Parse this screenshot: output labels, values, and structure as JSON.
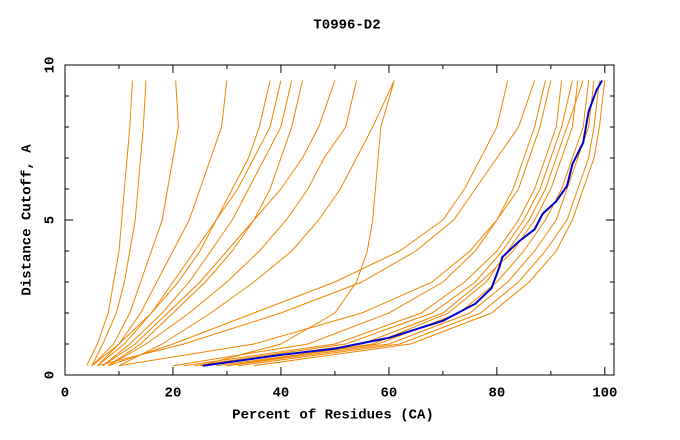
{
  "chart_data": {
    "type": "line",
    "title": "T0996-D2",
    "xlabel": "Percent of Residues (CA)",
    "ylabel": "Distance Cutoff, A",
    "xlim": [
      0,
      101.7
    ],
    "ylim": [
      0,
      10
    ],
    "xticks": [
      0,
      20,
      40,
      60,
      80,
      100
    ],
    "yticks": [
      0,
      5,
      10
    ],
    "xminorticks": [
      10,
      30,
      50,
      70,
      90
    ],
    "yminorticks": [
      1,
      2,
      3,
      4,
      6,
      7,
      8,
      9
    ],
    "series": [
      {
        "color": "#f28500",
        "x": [
          4,
          6,
          8,
          9,
          10,
          10.5,
          11,
          11.5,
          12,
          12.5
        ],
        "values": [
          0.3,
          1,
          2,
          3,
          4,
          5,
          6,
          7,
          8,
          9.5
        ]
      },
      {
        "color": "#f28500",
        "x": [
          5,
          7,
          9.5,
          11,
          12,
          13,
          13.5,
          14,
          14.5,
          15
        ],
        "values": [
          0.3,
          1,
          2,
          3,
          4,
          5,
          6,
          7,
          8,
          9.5
        ]
      },
      {
        "color": "#f28500",
        "x": [
          5,
          9,
          12,
          14,
          16,
          18,
          19,
          20,
          21,
          20.5
        ],
        "values": [
          0.3,
          1,
          2,
          3,
          4,
          5,
          6,
          7,
          8,
          9.5
        ]
      },
      {
        "color": "#f28500",
        "x": [
          6,
          10,
          14,
          17,
          20,
          23,
          25,
          27,
          29,
          30
        ],
        "values": [
          0.3,
          1,
          2,
          3,
          4,
          5,
          6,
          7,
          8,
          9.5
        ]
      },
      {
        "color": "#f28500",
        "x": [
          6,
          11,
          16,
          20,
          24,
          28,
          31,
          34,
          36,
          38
        ],
        "values": [
          0.3,
          1,
          2,
          3,
          4,
          5,
          6,
          7,
          8,
          9.5
        ]
      },
      {
        "color": "#f28500",
        "x": [
          7,
          12,
          18,
          23,
          27,
          31,
          34,
          37,
          40,
          42
        ],
        "values": [
          0.3,
          1,
          2,
          3,
          4,
          5,
          6,
          7,
          8,
          9.5
        ]
      },
      {
        "color": "#f28500",
        "x": [
          5,
          10,
          16,
          21,
          25,
          28,
          32,
          35,
          38,
          40
        ],
        "values": [
          0.3,
          1,
          2,
          3,
          4,
          5,
          6,
          7,
          8,
          9.5
        ]
      },
      {
        "color": "#f28500",
        "x": [
          8,
          14,
          20,
          26,
          31,
          35,
          38,
          40,
          42,
          44
        ],
        "values": [
          0.3,
          1,
          2,
          3,
          4,
          5,
          6,
          7,
          8,
          9.5
        ]
      },
      {
        "color": "#f28500",
        "x": [
          7,
          13,
          19,
          25,
          30,
          35,
          40,
          44,
          47,
          50
        ],
        "values": [
          0.3,
          1,
          2,
          3,
          4,
          5,
          6,
          7,
          8,
          9.5
        ]
      },
      {
        "color": "#f28500",
        "x": [
          8,
          15,
          23,
          30,
          36,
          41,
          45,
          48,
          52,
          54
        ],
        "values": [
          0.3,
          1,
          2,
          3,
          4,
          5,
          6,
          7,
          8,
          9.5
        ]
      },
      {
        "color": "#f28500",
        "x": [
          10,
          18,
          27,
          35,
          42,
          47,
          51,
          54,
          57,
          61
        ],
        "values": [
          0.3,
          1,
          2,
          3,
          4,
          5,
          6,
          7,
          8,
          9.5
        ]
      },
      {
        "color": "#f28500",
        "x": [
          25,
          40,
          50,
          54,
          56,
          57,
          57.5,
          58,
          58.5,
          61
        ],
        "values": [
          0.3,
          1,
          2,
          3,
          4,
          5,
          6,
          7,
          8,
          9.5
        ]
      },
      {
        "color": "#f28500",
        "x": [
          8,
          20,
          35,
          50,
          62,
          70,
          74,
          77,
          80,
          82
        ],
        "values": [
          0.3,
          1,
          2,
          3,
          4,
          5,
          6,
          7,
          8,
          9.5
        ]
      },
      {
        "color": "#f28500",
        "x": [
          6,
          22,
          40,
          55,
          65,
          72,
          76,
          80,
          84,
          87
        ],
        "values": [
          0.3,
          1,
          2,
          3,
          4,
          5,
          6,
          7,
          8,
          9.5
        ]
      },
      {
        "color": "#f28500",
        "x": [
          20,
          45,
          60,
          70,
          76,
          80,
          83,
          85,
          87,
          89
        ],
        "values": [
          0.3,
          1,
          2,
          3,
          4,
          5,
          6,
          7,
          8,
          9.5
        ]
      },
      {
        "color": "#f28500",
        "x": [
          22,
          50,
          66,
          74,
          80,
          84,
          87,
          89,
          91,
          92
        ],
        "values": [
          0.3,
          1,
          2,
          3,
          4,
          5,
          6,
          7,
          8,
          9.5
        ]
      },
      {
        "color": "#f28500",
        "x": [
          25,
          55,
          70,
          77,
          83,
          87,
          90,
          92,
          94,
          95
        ],
        "values": [
          0.3,
          1,
          2,
          3,
          4,
          5,
          6,
          7,
          8,
          9.5
        ]
      },
      {
        "color": "#f28500",
        "x": [
          28,
          58,
          73,
          80,
          85,
          89,
          92,
          94,
          96,
          97
        ],
        "values": [
          0.3,
          1,
          2,
          3,
          4,
          5,
          6,
          7,
          8,
          9.5
        ]
      },
      {
        "color": "#f28500",
        "x": [
          30,
          60,
          75,
          82,
          87,
          91,
          93,
          95,
          97,
          98
        ],
        "values": [
          0.3,
          1,
          2,
          3,
          4,
          5,
          6,
          7,
          8,
          9.5
        ]
      },
      {
        "color": "#f28500",
        "x": [
          32,
          62,
          77,
          84,
          89,
          93,
          95,
          97,
          98,
          99
        ],
        "values": [
          0.3,
          1,
          2,
          3,
          4,
          5,
          6,
          7,
          8,
          9.5
        ]
      },
      {
        "color": "#f28500",
        "x": [
          35,
          64,
          79,
          86,
          91,
          94,
          96,
          98,
          99,
          100
        ],
        "values": [
          0.3,
          1,
          2,
          3,
          4,
          5,
          6,
          7,
          8,
          9.5
        ]
      },
      {
        "color": "#f28500",
        "x": [
          24,
          52,
          68,
          76,
          81,
          85,
          88,
          90,
          92,
          94
        ],
        "values": [
          0.3,
          1,
          2,
          3,
          4,
          5,
          6,
          7,
          8,
          9.5
        ]
      },
      {
        "color": "#f28500",
        "x": [
          10,
          35,
          55,
          68,
          75,
          80,
          84,
          86,
          88,
          90
        ],
        "values": [
          0.3,
          1,
          2,
          3,
          4,
          5,
          6,
          7,
          8,
          9.5
        ]
      },
      {
        "color": "#f28500",
        "x": [
          30,
          57,
          71,
          78,
          82,
          86,
          89,
          91,
          93,
          96
        ],
        "values": [
          0.3,
          1,
          2,
          3,
          4,
          5,
          6,
          7,
          8,
          9.5
        ]
      },
      {
        "color": "#0000cc",
        "x": [
          25.5,
          40,
          50,
          60,
          70,
          76,
          79,
          80.5,
          81,
          84,
          87,
          88.5,
          91,
          93,
          94,
          96,
          97,
          98.5,
          99.5
        ],
        "values": [
          0.3,
          0.65,
          0.85,
          1.2,
          1.75,
          2.3,
          2.8,
          3.5,
          3.8,
          4.3,
          4.7,
          5.2,
          5.6,
          6.1,
          6.8,
          7.5,
          8.5,
          9.2,
          9.5
        ]
      }
    ]
  }
}
